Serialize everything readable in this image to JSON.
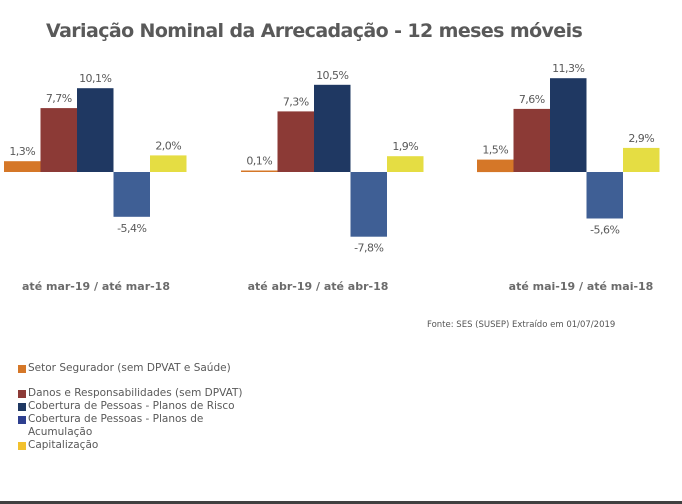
{
  "chart_data": {
    "type": "bar",
    "title": "Variação Nominal da Arrecadação - 12 meses móveis",
    "categories": [
      "até mar-19 / até mar-18",
      "até abr-19 / até abr-18",
      "até mai-19 / até mai-18"
    ],
    "series": [
      {
        "name": "Setor Segurador (sem DPVAT e Saúde)",
        "color": "#d57728",
        "values": [
          1.3,
          0.1,
          1.5
        ],
        "labels": [
          "1,3%",
          "0,1%",
          "1,5%"
        ]
      },
      {
        "name": "Danos e Responsabilidades (sem DPVAT)",
        "color": "#8c3a36",
        "values": [
          7.7,
          7.3,
          7.6
        ],
        "labels": [
          "7,7%",
          "7,3%",
          "7,6%"
        ]
      },
      {
        "name": "Cobertura de Pessoas - Planos de Risco",
        "color": "#1f3862",
        "values": [
          10.1,
          10.5,
          11.3
        ],
        "labels": [
          "10,1%",
          "10,5%",
          "11,3%"
        ]
      },
      {
        "name": "Cobertura de Pessoas - Planos de Acumulação",
        "color": "#3f5f95",
        "values": [
          -5.4,
          -7.8,
          -5.6
        ],
        "labels": [
          "-5,4%",
          "-7,8%",
          "-5,6%"
        ]
      },
      {
        "name": "Capitalização",
        "color": "#e5dd43",
        "values": [
          2.0,
          1.9,
          2.9
        ],
        "labels": [
          "2,0%",
          "1,9%",
          "2,9%"
        ]
      }
    ],
    "legend_colors": [
      "#d57728",
      "#8c3a36",
      "#1f3862",
      "#2e3f8f",
      "#f2c12e"
    ],
    "xlabel": "",
    "ylabel": "",
    "grid": false,
    "legend_position": "bottom-left",
    "source": "Fonte: SES (SUSEP) Extraído em 01/07/2019"
  }
}
